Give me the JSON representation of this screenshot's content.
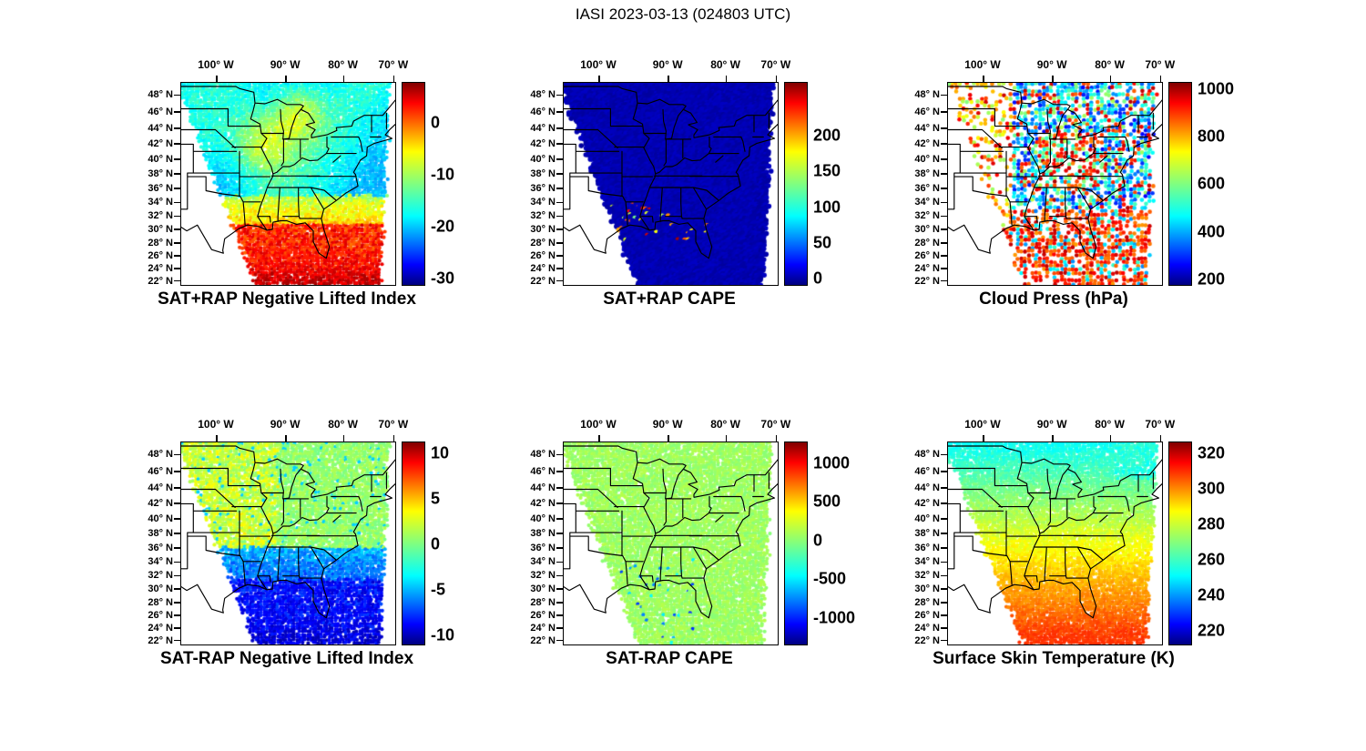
{
  "figure_title": "IASI 2023-03-13 (024803 UTC)",
  "axes": {
    "lon_labels": [
      "100° W",
      "90° W",
      "80° W",
      "70° W"
    ],
    "lat_labels": [
      "48° N",
      "46° N",
      "44° N",
      "42° N",
      "40° N",
      "38° N",
      "36° N",
      "34° N",
      "32° N",
      "30° N",
      "28° N",
      "26° N",
      "24° N",
      "22° N"
    ],
    "lon_values_deg_west": [
      100,
      90,
      80,
      70
    ],
    "lat_values_deg_north": [
      48,
      46,
      44,
      42,
      40,
      38,
      36,
      34,
      32,
      30,
      28,
      26,
      24,
      22
    ]
  },
  "chart_data": [
    {
      "id": "sat_plus_rap_nli",
      "type": "heatmap",
      "title": "SAT+RAP Negative Lifted Index",
      "colormap": "jet",
      "pattern": "nli_plus",
      "colorbar_ticks": [
        {
          "label": "0",
          "f": 0.2
        },
        {
          "label": "-10",
          "f": 0.456
        },
        {
          "label": "-20",
          "f": 0.713
        },
        {
          "label": "-30",
          "f": 0.969
        }
      ],
      "value_range": [
        -31,
        8
      ],
      "description": "Cyan/teal values (about -15 to -20) over the northern and central US, yellow-green patches over the upper Midwest and Great Lakes, orange-red values near 0 over the Gulf of Mexico and Florida; no data in the southwest (Texas) corner of the swath."
    },
    {
      "id": "sat_plus_rap_cape",
      "type": "heatmap",
      "title": "SAT+RAP CAPE",
      "colormap": "jet",
      "pattern": "cape_plus",
      "colorbar_ticks": [
        {
          "label": "200",
          "f": 0.262
        },
        {
          "label": "150",
          "f": 0.439
        },
        {
          "label": "100",
          "f": 0.615
        },
        {
          "label": "50",
          "f": 0.791
        },
        {
          "label": "0",
          "f": 0.967
        }
      ],
      "value_range": [
        0,
        240
      ],
      "description": "Near-zero CAPE (solid dark blue) across the whole tilted satellite swath; isolated yellow/red specks of 100-240 along the central Gulf coast and near south Florida."
    },
    {
      "id": "cloud_press",
      "type": "heatmap",
      "title": "Cloud Press (hPa)",
      "colormap": "jet",
      "pattern": "cloud_press",
      "colorbar_ticks": [
        {
          "label": "1000",
          "f": 0.03
        },
        {
          "label": "800",
          "f": 0.266
        },
        {
          "label": "600",
          "f": 0.502
        },
        {
          "label": "400",
          "f": 0.738
        },
        {
          "label": "200",
          "f": 0.974
        }
      ],
      "value_range": [
        150,
        1050
      ],
      "description": "Speckled cloud-top pressure field: blue/cyan dots (200-500 hPa, high cloud) over the Midwest, Northeast and Mississippi valley; orange-red dots (700-1000 hPa, low cloud) over the Ohio valley and across the Gulf of Mexico; sparse green/yellow dots over the plains; many white no-retrieval gaps."
    },
    {
      "id": "sat_minus_rap_nli",
      "type": "heatmap",
      "title": "SAT-RAP Negative Lifted Index",
      "colormap": "jet",
      "pattern": "nli_minus",
      "colorbar_ticks": [
        {
          "label": "10",
          "f": 0.054
        },
        {
          "label": "5",
          "f": 0.279
        },
        {
          "label": "0",
          "f": 0.504
        },
        {
          "label": "-5",
          "f": 0.729
        },
        {
          "label": "-10",
          "f": 0.954
        }
      ],
      "value_range": [
        -11,
        11
      ],
      "description": "Differences near 0 to +3 (green/yellow) over the northern and western part of the swath, cyan patches of -2 to -4, and strong dark-blue differences (-8 to -10) over the Gulf of Mexico and Florida."
    },
    {
      "id": "sat_minus_rap_cape",
      "type": "heatmap",
      "title": "SAT-RAP CAPE",
      "colormap": "jet",
      "pattern": "cape_minus",
      "colorbar_ticks": [
        {
          "label": "1000",
          "f": 0.104
        },
        {
          "label": "500",
          "f": 0.295
        },
        {
          "label": "0",
          "f": 0.486
        },
        {
          "label": "-500",
          "f": 0.677
        },
        {
          "label": "-1000",
          "f": 0.868
        }
      ],
      "value_range": [
        -1100,
        1100
      ],
      "description": "Near-uniform light green (difference about 0) over the whole swath, with a few blue specks (-300 to -600) near the Gulf coast and Louisiana."
    },
    {
      "id": "surface_skin_temp",
      "type": "heatmap",
      "title": "Surface Skin Temperature (K)",
      "colormap": "jet",
      "pattern": "skin_temp",
      "colorbar_ticks": [
        {
          "label": "320",
          "f": 0.054
        },
        {
          "label": "300",
          "f": 0.23
        },
        {
          "label": "280",
          "f": 0.405
        },
        {
          "label": "260",
          "f": 0.581
        },
        {
          "label": "240",
          "f": 0.757
        },
        {
          "label": "220",
          "f": 0.932
        }
      ],
      "value_range": [
        215,
        325
      ],
      "description": "Smooth north-to-south gradient: cyan (about 250-260 K) over the northern states, green (270-280 K) at mid-latitudes, yellow near 290 K, and orange (300-305 K) over the Gulf of Mexico, Florida and adjacent ocean."
    }
  ]
}
